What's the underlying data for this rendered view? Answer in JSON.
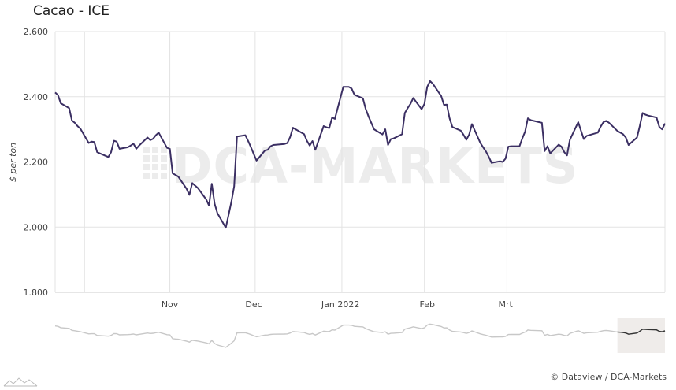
{
  "title": "Cacao - ICE",
  "credit": "© Dataview / DCA-Markets",
  "watermark": "DCA-MARKETS",
  "colors": {
    "line": "#3b2f63",
    "grid": "#e3e3e3",
    "navigator_line": "#c8c8c8",
    "navigator_selection": "#efecea",
    "navigator_selected_line": "#333333"
  },
  "chart_data": {
    "type": "line",
    "title": "Cacao - ICE",
    "ylabel": "$ per ton",
    "xlabel": "",
    "ylim": [
      1800,
      2600
    ],
    "y_ticks": [
      1800,
      2000,
      2200,
      2400,
      2600
    ],
    "y_tick_labels": [
      "1.800",
      "2.000",
      "2.200",
      "2.400",
      "2.600"
    ],
    "x_ticks": [
      {
        "date": "2021-11-01",
        "label": "Nov"
      },
      {
        "date": "2021-12-01",
        "label": "Dec"
      },
      {
        "date": "2022-01-01",
        "label": "Jan 2022"
      },
      {
        "date": "2022-02-01",
        "label": "Feb"
      },
      {
        "date": "2022-03-01",
        "label": "Mrt"
      }
    ],
    "grid": true,
    "series": [
      {
        "data": [
          [
            "2021-10-06",
            2413
          ],
          [
            "2021-10-07",
            2405
          ],
          [
            "2021-10-08",
            2380
          ],
          [
            "2021-10-11",
            2365
          ],
          [
            "2021-10-12",
            2327
          ],
          [
            "2021-10-13",
            2320
          ],
          [
            "2021-10-14",
            2310
          ],
          [
            "2021-10-15",
            2302
          ],
          [
            "2021-10-18",
            2258
          ],
          [
            "2021-10-19",
            2262
          ],
          [
            "2021-10-20",
            2261
          ],
          [
            "2021-10-21",
            2230
          ],
          [
            "2021-10-22",
            2226
          ],
          [
            "2021-10-25",
            2215
          ],
          [
            "2021-10-26",
            2230
          ],
          [
            "2021-10-27",
            2265
          ],
          [
            "2021-10-28",
            2262
          ],
          [
            "2021-10-29",
            2240
          ],
          [
            "2021-11-01",
            2245
          ],
          [
            "2021-11-02",
            2250
          ],
          [
            "2021-11-03",
            2256
          ],
          [
            "2021-11-04",
            2240
          ],
          [
            "2021-11-05",
            2250
          ],
          [
            "2021-11-08",
            2275
          ],
          [
            "2021-11-09",
            2267
          ],
          [
            "2021-11-10",
            2271
          ],
          [
            "2021-11-11",
            2282
          ],
          [
            "2021-11-12",
            2290
          ],
          [
            "2021-11-15",
            2243
          ],
          [
            "2021-11-16",
            2240
          ],
          [
            "2021-11-17",
            2165
          ],
          [
            "2021-11-18",
            2160
          ],
          [
            "2021-11-19",
            2155
          ],
          [
            "2021-11-22",
            2117
          ],
          [
            "2021-11-23",
            2099
          ],
          [
            "2021-11-24",
            2135
          ],
          [
            "2021-11-26",
            2120
          ],
          [
            "2021-11-29",
            2085
          ],
          [
            "2021-11-30",
            2066
          ],
          [
            "2021-12-01",
            2133
          ],
          [
            "2021-12-02",
            2072
          ],
          [
            "2021-12-03",
            2043
          ],
          [
            "2021-12-06",
            1998
          ],
          [
            "2021-12-07",
            2037
          ],
          [
            "2021-12-08",
            2078
          ],
          [
            "2021-12-09",
            2125
          ],
          [
            "2021-12-10",
            2278
          ],
          [
            "2021-12-13",
            2282
          ],
          [
            "2021-12-14",
            2264
          ],
          [
            "2021-12-15",
            2245
          ],
          [
            "2021-12-16",
            2224
          ],
          [
            "2021-12-17",
            2204
          ],
          [
            "2021-12-20",
            2235
          ],
          [
            "2021-12-21",
            2237
          ],
          [
            "2021-12-22",
            2248
          ],
          [
            "2021-12-23",
            2252
          ],
          [
            "2021-12-27",
            2255
          ],
          [
            "2021-12-28",
            2258
          ],
          [
            "2021-12-29",
            2276
          ],
          [
            "2021-12-30",
            2305
          ],
          [
            "2022-01-03",
            2285
          ],
          [
            "2022-01-04",
            2265
          ],
          [
            "2022-01-05",
            2250
          ],
          [
            "2022-01-06",
            2264
          ],
          [
            "2022-01-07",
            2237
          ],
          [
            "2022-01-10",
            2310
          ],
          [
            "2022-01-11",
            2306
          ],
          [
            "2022-01-12",
            2304
          ],
          [
            "2022-01-13",
            2336
          ],
          [
            "2022-01-14",
            2332
          ],
          [
            "2022-01-17",
            2430
          ],
          [
            "2022-01-18",
            2430
          ],
          [
            "2022-01-19",
            2430
          ],
          [
            "2022-01-20",
            2425
          ],
          [
            "2022-01-21",
            2406
          ],
          [
            "2022-01-24",
            2395
          ],
          [
            "2022-01-25",
            2363
          ],
          [
            "2022-01-26",
            2340
          ],
          [
            "2022-01-27",
            2320
          ],
          [
            "2022-01-28",
            2300
          ],
          [
            "2022-01-31",
            2284
          ],
          [
            "2022-02-01",
            2300
          ],
          [
            "2022-02-02",
            2252
          ],
          [
            "2022-02-03",
            2270
          ],
          [
            "2022-02-04",
            2272
          ],
          [
            "2022-02-07",
            2285
          ],
          [
            "2022-02-08",
            2350
          ],
          [
            "2022-02-09",
            2365
          ],
          [
            "2022-02-10",
            2378
          ],
          [
            "2022-02-11",
            2396
          ],
          [
            "2022-02-14",
            2362
          ],
          [
            "2022-02-15",
            2378
          ],
          [
            "2022-02-16",
            2430
          ],
          [
            "2022-02-17",
            2448
          ],
          [
            "2022-02-18",
            2440
          ],
          [
            "2022-02-21",
            2402
          ],
          [
            "2022-02-22",
            2375
          ],
          [
            "2022-02-23",
            2376
          ],
          [
            "2022-02-24",
            2334
          ],
          [
            "2022-02-25",
            2307
          ],
          [
            "2022-02-28",
            2296
          ],
          [
            "2022-03-01",
            2283
          ],
          [
            "2022-03-02",
            2268
          ],
          [
            "2022-03-03",
            2284
          ],
          [
            "2022-03-04",
            2316
          ],
          [
            "2022-03-07",
            2258
          ],
          [
            "2022-03-08",
            2245
          ],
          [
            "2022-03-09",
            2232
          ],
          [
            "2022-03-10",
            2216
          ],
          [
            "2022-03-11",
            2197
          ],
          [
            "2022-03-14",
            2202
          ],
          [
            "2022-03-15",
            2200
          ],
          [
            "2022-03-16",
            2210
          ],
          [
            "2022-03-17",
            2247
          ],
          [
            "2022-03-18",
            2248
          ],
          [
            "2022-03-21",
            2248
          ],
          [
            "2022-03-22",
            2272
          ],
          [
            "2022-03-23",
            2293
          ],
          [
            "2022-03-24",
            2334
          ],
          [
            "2022-03-25",
            2328
          ],
          [
            "2022-03-28",
            2322
          ],
          [
            "2022-03-29",
            2320
          ],
          [
            "2022-03-30",
            2233
          ],
          [
            "2022-03-31",
            2248
          ],
          [
            "2022-04-01",
            2226
          ],
          [
            "2022-04-04",
            2253
          ],
          [
            "2022-04-05",
            2247
          ],
          [
            "2022-04-06",
            2230
          ],
          [
            "2022-04-07",
            2220
          ],
          [
            "2022-04-08",
            2268
          ],
          [
            "2022-04-11",
            2322
          ],
          [
            "2022-04-12",
            2295
          ],
          [
            "2022-04-13",
            2270
          ],
          [
            "2022-04-14",
            2280
          ],
          [
            "2022-04-18",
            2290
          ],
          [
            "2022-04-19",
            2308
          ],
          [
            "2022-04-20",
            2322
          ],
          [
            "2022-04-21",
            2326
          ],
          [
            "2022-04-22",
            2320
          ],
          [
            "2022-04-25",
            2295
          ],
          [
            "2022-04-26",
            2290
          ],
          [
            "2022-04-27",
            2285
          ],
          [
            "2022-04-28",
            2275
          ],
          [
            "2022-04-29",
            2252
          ],
          [
            "2022-05-02",
            2275
          ],
          [
            "2022-05-03",
            2310
          ],
          [
            "2022-05-04",
            2350
          ],
          [
            "2022-05-05",
            2345
          ],
          [
            "2022-05-06",
            2342
          ],
          [
            "2022-05-09",
            2336
          ],
          [
            "2022-05-10",
            2307
          ],
          [
            "2022-05-11",
            2300
          ],
          [
            "2022-05-12",
            2318
          ]
        ]
      }
    ]
  }
}
